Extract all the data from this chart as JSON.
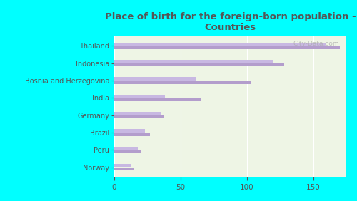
{
  "title": "Place of birth for the foreign-born population -\nCountries",
  "countries": [
    "Thailand",
    "Indonesia",
    "Bosnia and Herzegovina",
    "India",
    "Germany",
    "Brazil",
    "Peru",
    "Norway"
  ],
  "values1": [
    170,
    128,
    103,
    65,
    37,
    27,
    20,
    15
  ],
  "values2": [
    160,
    120,
    62,
    38,
    35,
    23,
    18,
    13
  ],
  "bar_color1": "#b39dcc",
  "bar_color2": "#c8b8e2",
  "background_color": "#00ffff",
  "plot_bg_color": "#eef5e5",
  "title_color": "#555555",
  "label_color": "#555555",
  "xlim": [
    0,
    175
  ],
  "xticks": [
    0,
    50,
    100,
    150
  ],
  "watermark": "City-Data.com"
}
